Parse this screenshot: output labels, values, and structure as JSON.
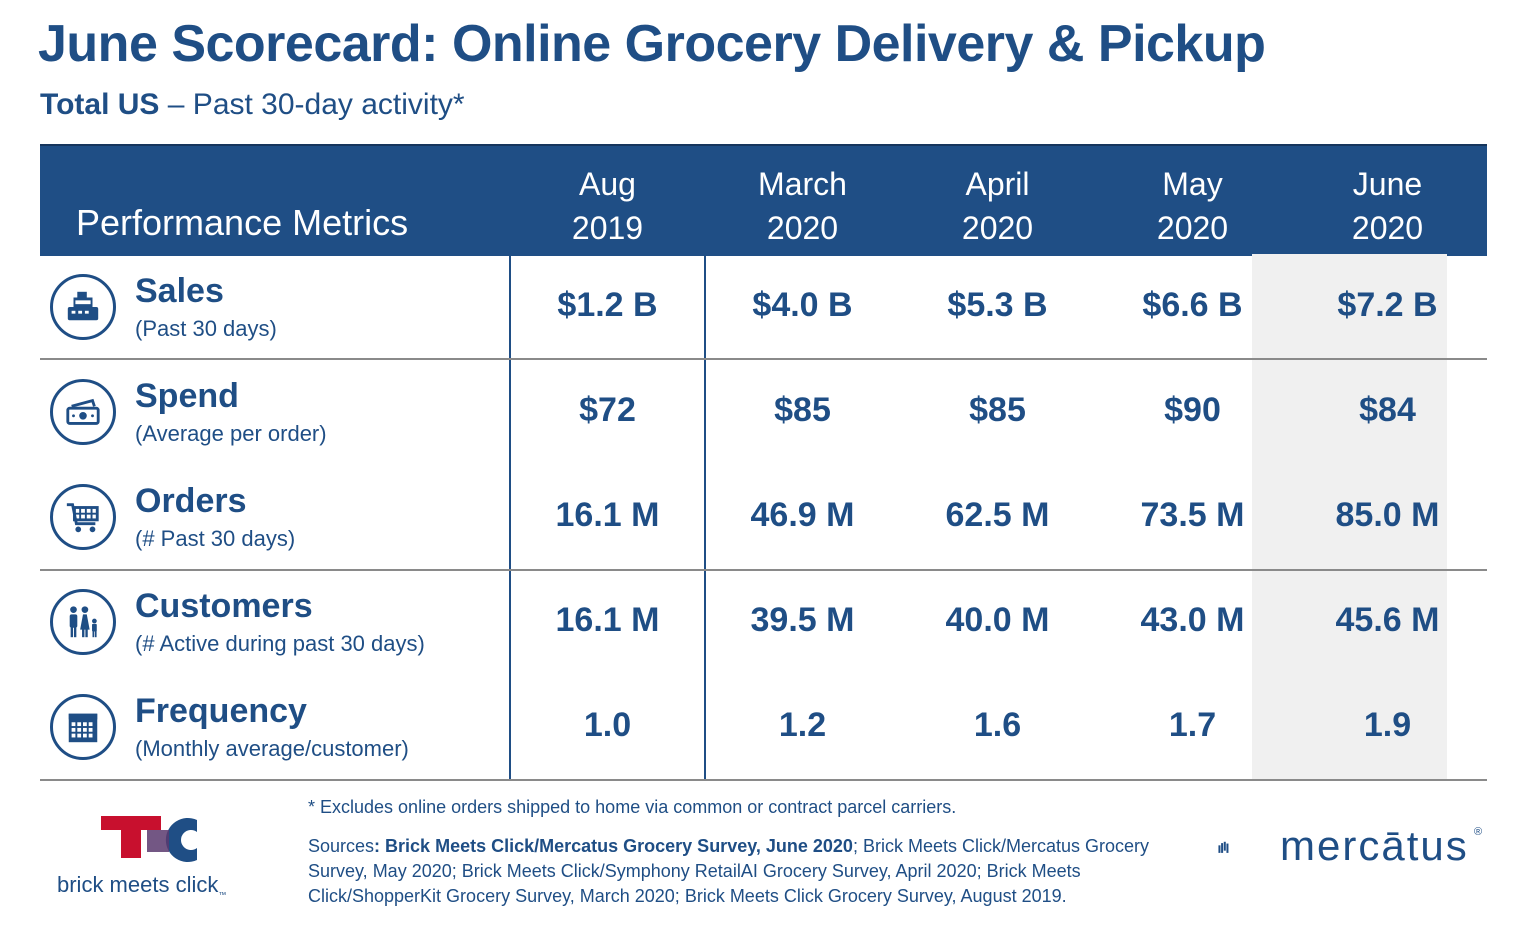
{
  "title": "June Scorecard: Online Grocery Delivery & Pickup",
  "subtitle": {
    "bold": "Total US",
    "rest": " – Past 30-day activity*"
  },
  "header": {
    "metrics_label": "Performance Metrics",
    "columns": [
      {
        "line1": "Aug",
        "line2": "2019"
      },
      {
        "line1": "March",
        "line2": "2020"
      },
      {
        "line1": "April",
        "line2": "2020"
      },
      {
        "line1": "May",
        "line2": "2020"
      },
      {
        "line1": "June",
        "line2": "2020"
      }
    ]
  },
  "rows": [
    {
      "icon": "cash-register-icon",
      "name": "Sales",
      "desc": "(Past 30 days)",
      "values": [
        "$1.2 B",
        "$4.0 B",
        "$5.3 B",
        "$6.6 B",
        "$7.2 B"
      ]
    },
    {
      "icon": "money-wallet-icon",
      "name": "Spend",
      "desc": "(Average per order)",
      "values": [
        "$72",
        "$85",
        "$85",
        "$90",
        "$84"
      ]
    },
    {
      "icon": "shopping-cart-icon",
      "name": "Orders",
      "desc": "(# Past 30 days)",
      "values": [
        "16.1 M",
        "46.9 M",
        "62.5 M",
        "73.5 M",
        "85.0 M"
      ]
    },
    {
      "icon": "family-icon",
      "name": "Customers",
      "desc": "(# Active during past 30 days)",
      "values": [
        "16.1 M",
        "39.5 M",
        "40.0 M",
        "43.0 M",
        "45.6 M"
      ]
    },
    {
      "icon": "calendar-icon",
      "name": "Frequency",
      "desc": "(Monthly average/customer)",
      "values": [
        "1.0",
        "1.2",
        "1.6",
        "1.7",
        "1.9"
      ]
    }
  ],
  "footnote": "* Excludes online orders shipped to home via common or contract parcel carriers.",
  "sources": {
    "prefix": "Sources",
    "bold": ": Brick Meets Click/Mercatus Grocery Survey, June 2020",
    "rest": ";  Brick Meets Click/Mercatus Grocery Survey, May 2020; Brick Meets Click/Symphony RetailAI Grocery Survey, April 2020; Brick Meets Click/ShopperKit Grocery Survey, March 2020; Brick Meets Click Grocery Survey, August 2019."
  },
  "logos": {
    "left_text": "brick meets click",
    "left_tm": "™",
    "right_text": "mercātus",
    "right_reg": "®"
  },
  "colors": {
    "primary": "#1f4e85",
    "highlight_col": "#f0f0f0",
    "logo_red": "#c8102e"
  }
}
